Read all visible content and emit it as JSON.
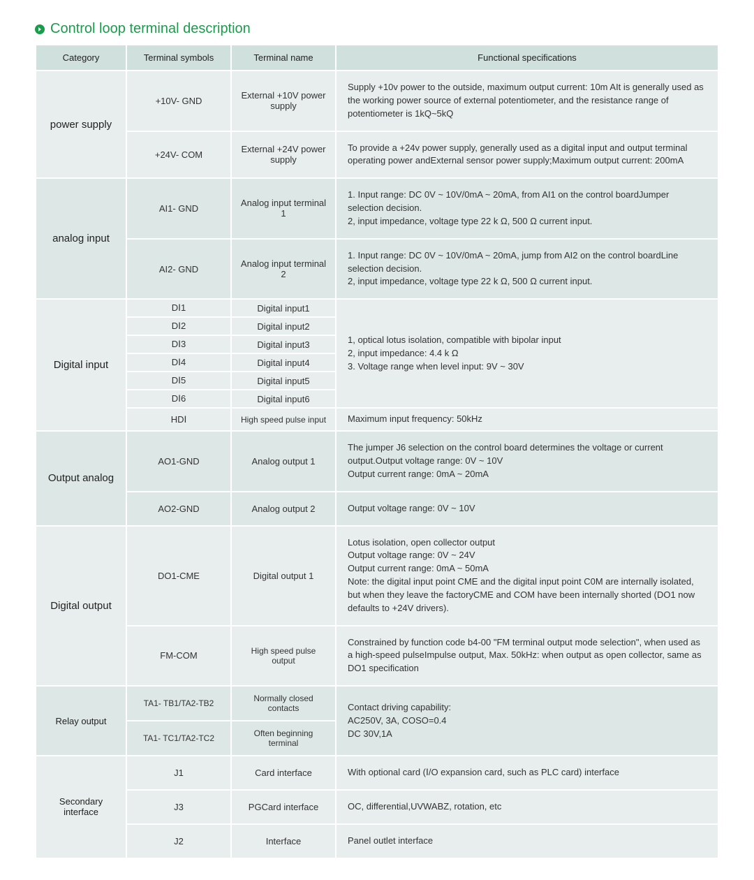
{
  "title": "Control loop terminal description",
  "columns": [
    "Category",
    "Terminal symbols",
    "Terminal name",
    "Functional specifications"
  ],
  "cat": {
    "power": "power supply",
    "ain": "analog input",
    "din": "Digital input",
    "aout": "Output analog",
    "dout": "Digital output",
    "relay": "Relay output",
    "sec": "Secondary interface"
  },
  "rows": {
    "p1": {
      "sym": "+10V- GND",
      "name": "External +10V power supply",
      "spec": "Supply +10v power to the outside, maximum output current: 10m AIt is generally used as the working power source of external potentiometer, and the resistance range of potentiometer is 1kQ~5kQ"
    },
    "p2": {
      "sym": "+24V- COM",
      "name": "External +24V power supply",
      "spec": "To provide a +24v power supply, generally used as a digital input and output terminal operating power andExternal sensor power supply;Maximum output current: 200mA"
    },
    "ai1": {
      "sym": "AI1- GND",
      "name": "Analog input terminal 1",
      "spec": "1. Input range: DC 0V ~ 10V/0mA ~ 20mA, from AI1 on the control boardJumper selection decision.\n2, input impedance, voltage type 22 k Ω, 500 Ω current input."
    },
    "ai2": {
      "sym": "AI2- GND",
      "name": "Analog input terminal 2",
      "spec": "1. Input range: DC 0V ~ 10V/0mA ~ 20mA, jump from AI2 on the control boardLine selection decision.\n2, input impedance, voltage type 22 k Ω, 500 Ω current input."
    },
    "di1": {
      "sym": "DⅠ1",
      "name": "Digital input1"
    },
    "di2": {
      "sym": "DⅠ2",
      "name": "Digital input2"
    },
    "di3": {
      "sym": "DⅠ3",
      "name": "Digital input3"
    },
    "di4": {
      "sym": "DⅠ4",
      "name": "Digital input4"
    },
    "di5": {
      "sym": "DⅠ5",
      "name": "Digital input5"
    },
    "di6": {
      "sym": "DⅠ6",
      "name": "Digital input6"
    },
    "di_spec": "1, optical lotus isolation, compatible with bipolar input\n2, input impedance: 4.4 k Ω\n3. Voltage range when level input: 9V ~ 30V",
    "hdi": {
      "sym": "HDⅠ",
      "name": "High speed pulse input",
      "spec": "Maximum input frequency: 50kHz"
    },
    "ao1": {
      "sym": "AO1-GND",
      "name": "Analog output 1",
      "spec": "The jumper J6 selection on the control board determines the voltage or current output.Output voltage range: 0V ~ 10V\nOutput current range: 0mA ~ 20mA"
    },
    "ao2": {
      "sym": "AO2-GND",
      "name": "Analog output 2",
      "spec": "Output voltage range: 0V ~ 10V"
    },
    "do1": {
      "sym": "DO1-CME",
      "name": "Digital output 1",
      "spec": "Lotus isolation, open collector output\nOutput voltage range: 0V ~ 24V\nOutput current range: 0mA ~ 50mA\nNote: the digital input point CME and the digital input point C0M are internally isolated, but when they leave the factoryCME and COM have been internally shorted (DO1 now defaults to +24V drivers)."
    },
    "fm": {
      "sym": "FM-COM",
      "name": "High speed pulse output",
      "spec": "Constrained by function code b4-00 \"FM terminal output mode selection\", when used as a high-speed pulseImpulse output, Max. 50kHz: when output as open collector, same as DO1 specification"
    },
    "r1": {
      "sym": "TA1- TB1/TA2-TB2",
      "name": "Normally closed contacts"
    },
    "r2": {
      "sym": "TA1- TC1/TA2-TC2",
      "name": "Often beginning terminal"
    },
    "r_spec": "Contact driving capability:\nAC250V, 3A, COSO=0.4\nDC 30V,1A",
    "j1": {
      "sym": "J1",
      "name": "Card interface",
      "spec": "With optional card (Ⅰ/O expansion card, such as PLC card) interface"
    },
    "j3": {
      "sym": "J3",
      "name": "PGCard interface",
      "spec": "OC, differential,UVWABZ, rotation, etc"
    },
    "j2": {
      "sym": "J2",
      "name": "Interface",
      "spec": "Panel outlet interface"
    }
  }
}
